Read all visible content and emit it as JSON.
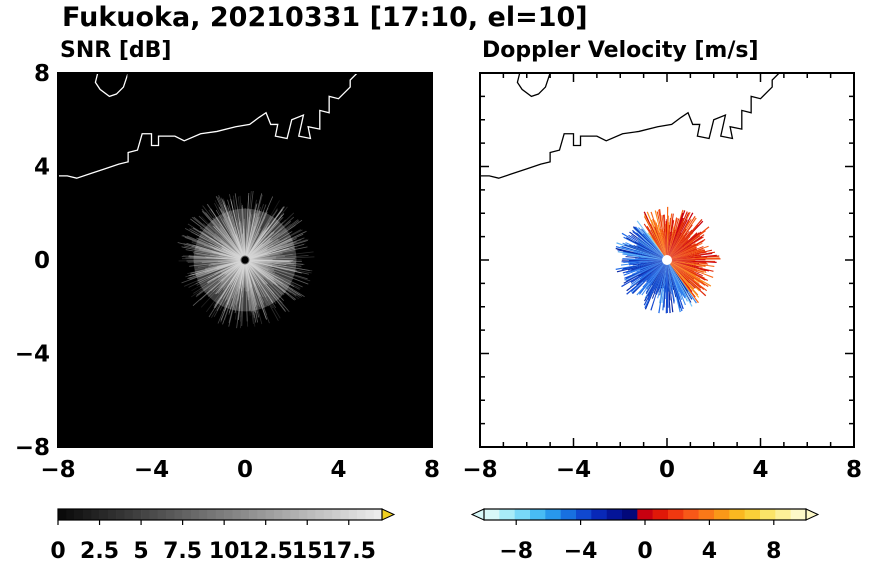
{
  "title": "Fukuoka, 20210331 [17:10, el=10]",
  "panels": [
    {
      "title": "SNR [dB]"
    },
    {
      "title": "Doppler Velocity [m/s]"
    }
  ],
  "colorbars": [
    {
      "tick_labels": [
        "0",
        "2.5",
        "5",
        "7.5",
        "10",
        "12.5",
        "15",
        "17.5"
      ],
      "ticks": [
        0,
        2.5,
        5,
        7.5,
        10,
        12.5,
        15,
        17.5
      ],
      "range": [
        0,
        19.5
      ],
      "extend": "max",
      "over_color": "#f0d020"
    },
    {
      "tick_labels": [
        "−8",
        "−4",
        "0",
        "4",
        "8"
      ],
      "ticks": [
        -8,
        -4,
        0,
        4,
        8
      ],
      "range": [
        -10,
        10
      ],
      "extend": "both",
      "colors": [
        "#d8f8f8",
        "#a8ecf8",
        "#78d8f8",
        "#48bcf4",
        "#2898ec",
        "#1870e0",
        "#1048d0",
        "#0828b8",
        "#041498",
        "#02087a",
        "#c80010",
        "#e01808",
        "#f03810",
        "#f85818",
        "#fb7818",
        "#fb9818",
        "#fbb820",
        "#fbd038",
        "#fbe468",
        "#fcf098",
        "#fcf8c8"
      ]
    }
  ],
  "chart_data": [
    {
      "type": "heatmap",
      "title": "SNR [dB]",
      "xlim": [
        -8,
        8
      ],
      "ylim": [
        -8,
        8
      ],
      "x_ticks": [
        -8,
        -4,
        0,
        4,
        8
      ],
      "y_ticks": [
        -8,
        -4,
        0,
        4,
        8
      ],
      "x_tick_labels": [
        "−8",
        "−4",
        "0",
        "4",
        "8"
      ],
      "y_tick_labels": [
        "−8",
        "−4",
        "0",
        "4",
        "8"
      ],
      "background": "#000000",
      "coastline_color": "#ffffff",
      "echo": {
        "center": [
          0,
          0
        ],
        "max_radius_km": 3,
        "color": "#d8d8d8"
      }
    },
    {
      "type": "heatmap",
      "title": "Doppler Velocity [m/s]",
      "xlim": [
        -8,
        8
      ],
      "ylim": [
        -8,
        8
      ],
      "x_ticks": [
        -8,
        -4,
        0,
        4,
        8
      ],
      "y_ticks": [
        -8,
        -4,
        0,
        4,
        8
      ],
      "x_tick_labels": [
        "−8",
        "−4",
        "0",
        "4",
        "8"
      ],
      "background": "#ffffff",
      "coastline_color": "#000000",
      "echo": {
        "center": [
          0,
          0
        ],
        "max_radius_km": 2.3,
        "approach_color": "#1f5fe0",
        "recede_color": "#f05010"
      }
    }
  ]
}
